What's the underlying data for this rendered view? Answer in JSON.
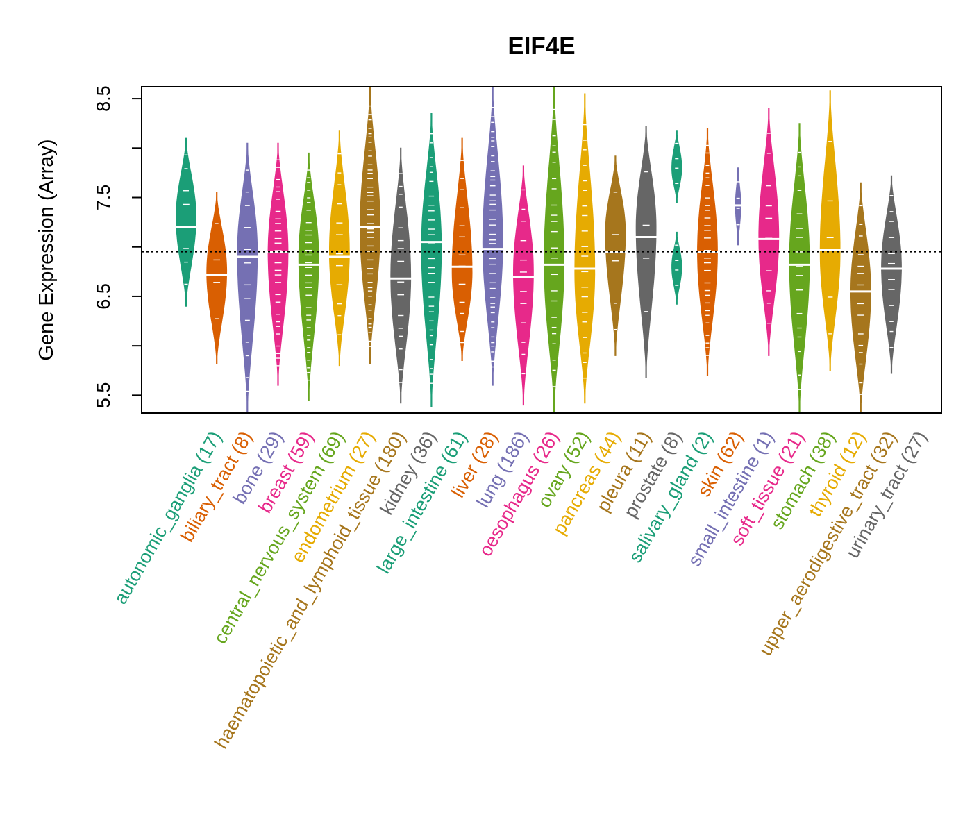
{
  "chart_data": {
    "type": "violin",
    "title": "EIF4E",
    "xlabel": "",
    "ylabel": "Gene Expression (Array)",
    "ylim": [
      5.32,
      8.62
    ],
    "yticks": [
      5.5,
      6.0,
      6.5,
      7.0,
      7.5,
      8.0,
      8.5
    ],
    "ytick_labels": [
      "5.5",
      "",
      "6.5",
      "",
      "7.5",
      "",
      "8.5"
    ],
    "reference_line": 6.95,
    "categories": [
      {
        "name": "autonomic_ganglia",
        "n": 17,
        "label": "autonomic_ganglia (17)",
        "color": "#1B9E77",
        "min": 6.4,
        "max": 8.1,
        "median": 7.2,
        "mode": 7.3,
        "width": 0.8
      },
      {
        "name": "biliary_tract",
        "n": 8,
        "label": "biliary_tract (8)",
        "color": "#D95F02",
        "min": 5.82,
        "max": 7.55,
        "median": 6.72,
        "mode": 6.75,
        "width": 0.8
      },
      {
        "name": "bone",
        "n": 29,
        "label": "bone (29)",
        "color": "#7570B3",
        "min": 5.32,
        "max": 8.05,
        "median": 6.9,
        "mode": 6.95,
        "width": 0.8
      },
      {
        "name": "breast",
        "n": 59,
        "label": "breast (59)",
        "color": "#E7298A",
        "min": 5.6,
        "max": 8.05,
        "median": 6.95,
        "mode": 6.95,
        "width": 0.8
      },
      {
        "name": "central_nervous_system",
        "n": 69,
        "label": "central_nervous_system (69)",
        "color": "#66A61E",
        "min": 5.45,
        "max": 7.95,
        "median": 6.82,
        "mode": 6.9,
        "width": 0.8
      },
      {
        "name": "endometrium",
        "n": 27,
        "label": "endometrium (27)",
        "color": "#E6AB02",
        "min": 5.8,
        "max": 8.18,
        "median": 6.9,
        "mode": 6.95,
        "width": 0.8
      },
      {
        "name": "haematopoietic_and_lymphoid_tissue",
        "n": 180,
        "label": "haematopoietic_and_lymphoid_tissue (180)",
        "color": "#A6761D",
        "min": 5.82,
        "max": 8.62,
        "median": 7.2,
        "mode": 7.2,
        "width": 0.8
      },
      {
        "name": "kidney",
        "n": 36,
        "label": "kidney (36)",
        "color": "#666666",
        "min": 5.42,
        "max": 8.0,
        "median": 6.68,
        "mode": 6.7,
        "width": 0.8
      },
      {
        "name": "large_intestine",
        "n": 61,
        "label": "large_intestine (61)",
        "color": "#1B9E77",
        "min": 5.38,
        "max": 8.35,
        "median": 7.05,
        "mode": 7.0,
        "width": 0.8
      },
      {
        "name": "liver",
        "n": 28,
        "label": "liver (28)",
        "color": "#D95F02",
        "min": 5.85,
        "max": 8.1,
        "median": 6.8,
        "mode": 6.75,
        "width": 0.8
      },
      {
        "name": "lung",
        "n": 186,
        "label": "lung (186)",
        "color": "#7570B3",
        "min": 5.6,
        "max": 8.62,
        "median": 6.98,
        "mode": 7.05,
        "width": 0.8
      },
      {
        "name": "oesophagus",
        "n": 26,
        "label": "oesophagus (26)",
        "color": "#E7298A",
        "min": 5.4,
        "max": 7.82,
        "median": 6.7,
        "mode": 6.75,
        "width": 0.8
      },
      {
        "name": "ovary",
        "n": 52,
        "label": "ovary (52)",
        "color": "#66A61E",
        "min": 5.32,
        "max": 8.62,
        "median": 6.82,
        "mode": 6.85,
        "width": 0.8
      },
      {
        "name": "pancreas",
        "n": 44,
        "label": "pancreas (44)",
        "color": "#E6AB02",
        "min": 5.42,
        "max": 8.55,
        "median": 6.78,
        "mode": 6.75,
        "width": 0.8
      },
      {
        "name": "pleura",
        "n": 11,
        "label": "pleura (11)",
        "color": "#A6761D",
        "min": 5.9,
        "max": 7.92,
        "median": 6.95,
        "mode": 7.15,
        "width": 0.8
      },
      {
        "name": "prostate",
        "n": 8,
        "label": "prostate (8)",
        "color": "#666666",
        "min": 5.68,
        "max": 8.22,
        "median": 7.1,
        "mode": 7.2,
        "width": 0.8
      },
      {
        "name": "salivary_gland",
        "n": 2,
        "label": "salivary_gland (2)",
        "color": "#1B9E77",
        "min": 6.42,
        "max": 8.18,
        "median": 7.3,
        "width": 0.4,
        "lobes": [
          [
            7.45,
            8.18,
            7.8
          ],
          [
            6.42,
            7.15,
            6.8
          ]
        ]
      },
      {
        "name": "skin",
        "n": 62,
        "label": "skin (62)",
        "color": "#D95F02",
        "min": 5.7,
        "max": 8.2,
        "median": 6.95,
        "mode": 6.95,
        "width": 0.8
      },
      {
        "name": "small_intestine",
        "n": 1,
        "label": "small_intestine (1)",
        "color": "#7570B3",
        "min": 7.02,
        "max": 7.8,
        "median": 7.42,
        "mode": 7.42,
        "width": 0.22
      },
      {
        "name": "soft_tissue",
        "n": 21,
        "label": "soft_tissue (21)",
        "color": "#E7298A",
        "min": 5.9,
        "max": 8.4,
        "median": 7.08,
        "mode": 7.1,
        "width": 0.8
      },
      {
        "name": "stomach",
        "n": 38,
        "label": "stomach (38)",
        "color": "#66A61E",
        "min": 5.32,
        "max": 8.25,
        "median": 6.82,
        "mode": 6.85,
        "width": 0.8
      },
      {
        "name": "thyroid",
        "n": 12,
        "label": "thyroid (12)",
        "color": "#E6AB02",
        "min": 5.75,
        "max": 8.58,
        "median": 6.97,
        "mode": 6.95,
        "width": 0.8
      },
      {
        "name": "upper_aerodigestive_tract",
        "n": 32,
        "label": "upper_aerodigestive_tract (32)",
        "color": "#A6761D",
        "min": 5.32,
        "max": 7.65,
        "median": 6.55,
        "mode": 6.55,
        "width": 0.8
      },
      {
        "name": "urinary_tract",
        "n": 27,
        "label": "urinary_tract (27)",
        "color": "#666666",
        "min": 5.72,
        "max": 7.72,
        "median": 6.78,
        "mode": 6.8,
        "width": 0.8
      }
    ]
  }
}
